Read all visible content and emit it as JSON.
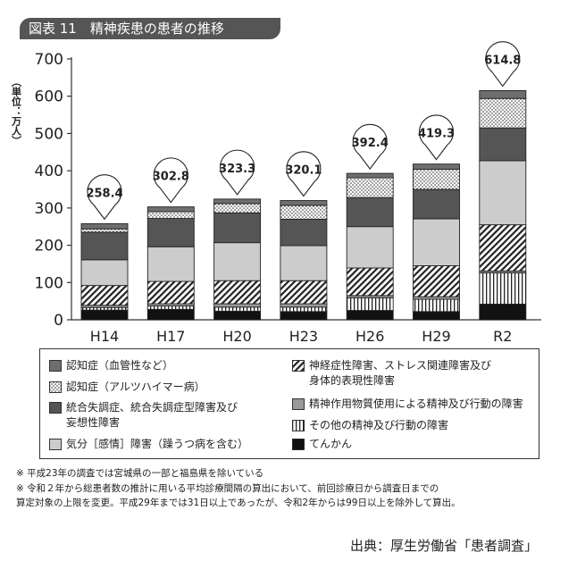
{
  "title": "図表 11　精神疾患の患者の推移",
  "chart_data": {
    "type": "bar",
    "stacked": true,
    "title": "図表 11　精神疾患の患者の推移",
    "ylabel": "（単位：万人）",
    "xlabel": "",
    "ylim": [
      0,
      700
    ],
    "yticks": [
      0,
      100,
      200,
      300,
      400,
      500,
      600,
      700
    ],
    "grid": false,
    "legend_position": "bottom",
    "categories": [
      "H14",
      "H17",
      "H20",
      "H23",
      "H26",
      "H29",
      "R2"
    ],
    "totals": [
      "258.4",
      "302.8",
      "323.3",
      "320.1",
      "392.4",
      "419.3",
      "614.8"
    ],
    "series": [
      {
        "name": "てんかん",
        "key": "epilepsy",
        "values": [
          26,
          28,
          23,
          22,
          25,
          22,
          42
        ]
      },
      {
        "name": "その他の精神及び行動の障害",
        "key": "other",
        "values": [
          7,
          9,
          11,
          12,
          34,
          33,
          84
        ]
      },
      {
        "name": "精神作用物質使用による精神及び行動の障害",
        "key": "substance",
        "values": [
          6,
          6,
          9,
          9,
          6,
          7,
          5
        ]
      },
      {
        "name": "神経症性障害、ストレス関連障害及び身体的表現性障害",
        "key": "neurotic",
        "values": [
          53,
          60,
          62,
          62,
          74,
          83,
          124
        ]
      },
      {
        "name": "気分［感情］障害（躁うつ病を含む）",
        "key": "mood",
        "values": [
          69,
          93,
          102,
          94,
          111,
          126,
          172
        ]
      },
      {
        "name": "統合失調症、統合失調症型障害及び妄想性障害",
        "key": "schizo",
        "values": [
          74,
          76,
          80,
          71,
          78,
          79,
          88
        ]
      },
      {
        "name": "認知症（アルツハイマー病）",
        "key": "alz",
        "values": [
          9,
          18,
          25,
          37,
          53,
          54,
          79
        ]
      },
      {
        "name": "認知症（血管性など）",
        "key": "vascular",
        "values": [
          14,
          13,
          12,
          13,
          12,
          14,
          21
        ]
      }
    ],
    "legend_left": [
      "認知症（血管性など）",
      "認知症（アルツハイマー病）",
      "統合失調症、統合失調症型障害及び妄想性障害",
      "気分［感情］障害（躁うつ病を含む）"
    ],
    "legend_right": [
      "神経症性障害、ストレス関連障害及び身体的表現性障害",
      "精神作用物質使用による精神及び行動の障害",
      "その他の精神及び行動の障害",
      "てんかん"
    ],
    "styles": {
      "vascular": {
        "fill": "#6e6e6e",
        "pattern": "solid"
      },
      "alz": {
        "fill": "#ffffff",
        "pattern": "dots"
      },
      "schizo": {
        "fill": "#555555",
        "pattern": "solid"
      },
      "mood": {
        "fill": "#cccccc",
        "pattern": "solid"
      },
      "neurotic": {
        "fill": "#ffffff",
        "pattern": "hatch"
      },
      "substance": {
        "fill": "#999999",
        "pattern": "solid"
      },
      "other": {
        "fill": "#ffffff",
        "pattern": "vlines"
      },
      "epilepsy": {
        "fill": "#111111",
        "pattern": "solid"
      }
    }
  },
  "legend": {
    "left": [
      [
        "認知症（血管性など）"
      ],
      [
        "認知症（アルツハイマー病）"
      ],
      [
        "統合失調症、統合失調症型障害及び",
        "妄想性障害"
      ],
      [
        "気分［感情］障害（躁うつ病を含む）"
      ]
    ],
    "right": [
      [
        "神経症性障害、ストレス関連障害及び",
        "身体的表現性障害"
      ],
      [
        "精神作用物質使用による精神及び行動の障害"
      ],
      [
        "その他の精神及び行動の障害"
      ],
      [
        "てんかん"
      ]
    ]
  },
  "notes": [
    "※ 平成23年の調査では宮城県の一部と福島県を除いている",
    "※ 令和２年から総患者数の推計に用いる平均診療間隔の算出において、前回診療日から調査日までの",
    "算定対象の上限を変更。平成29年までは31日以上であったが、令和2年からは99日以上を除外して算出。"
  ],
  "source": "出典：厚生労働省「患者調査」"
}
